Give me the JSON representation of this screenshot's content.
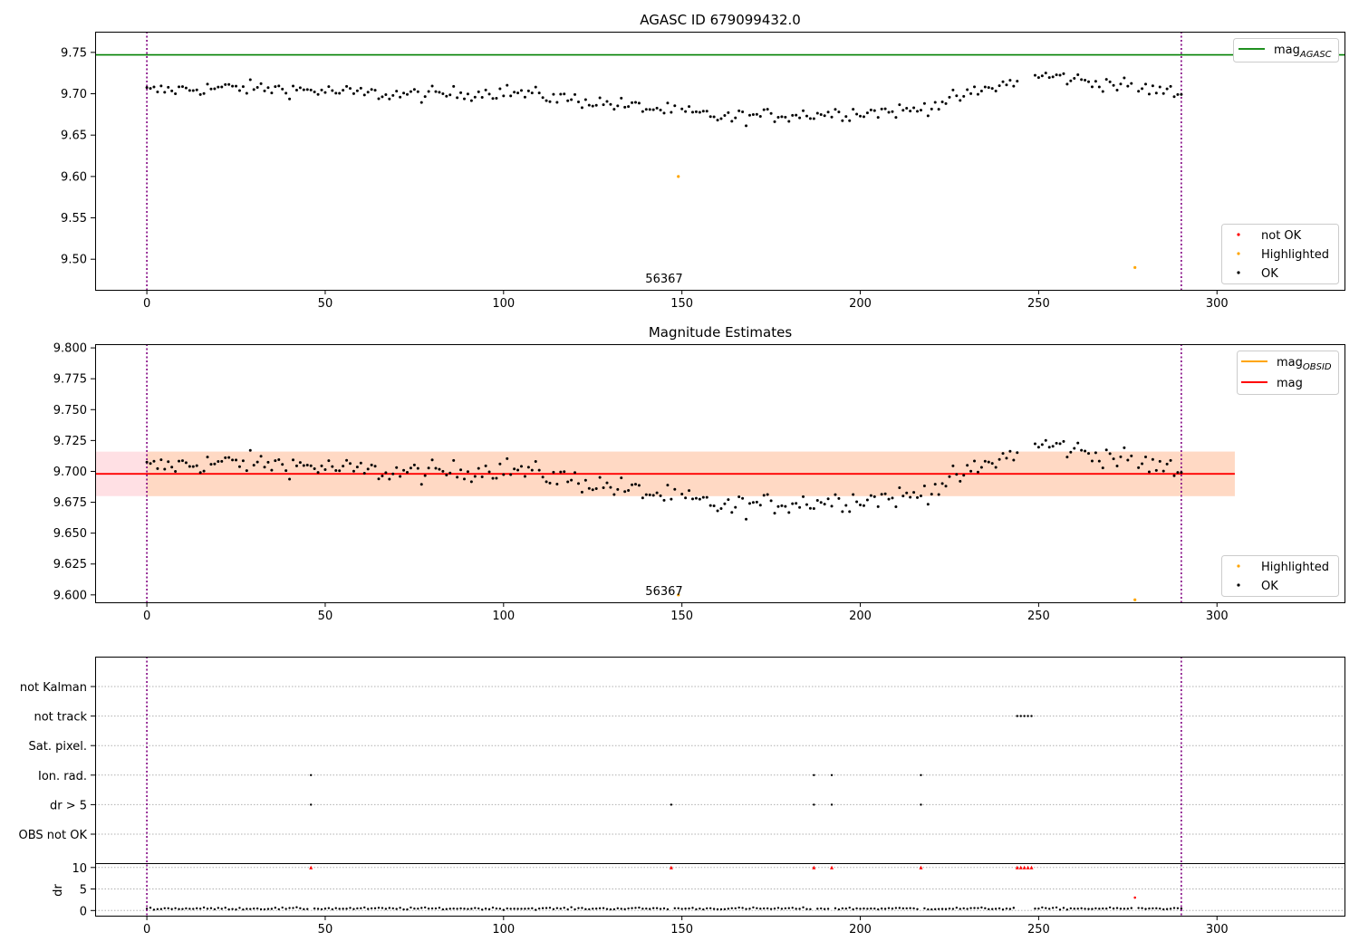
{
  "chart_data": [
    {
      "type": "scatter",
      "title": "AGASC ID 679099432.0",
      "x_ticks": [
        0,
        50,
        100,
        150,
        200,
        250,
        300
      ],
      "y_ticks": [
        9.5,
        9.55,
        9.6,
        9.65,
        9.7,
        9.75
      ],
      "xlim": [
        -14.5,
        336
      ],
      "ylim": [
        9.463,
        9.775
      ],
      "obs_boundaries": [
        0,
        290
      ],
      "annotation": {
        "text": "56367",
        "x": 145
      },
      "reference_line": {
        "name": "mag",
        "subscript": "AGASC",
        "value": 9.747,
        "color": "#008000"
      },
      "legend_lines_position": "top-right",
      "legend_points_position": "bottom-right",
      "legend_points": [
        {
          "name": "not OK",
          "color": "#ff0000"
        },
        {
          "name": "Highlighted",
          "color": "#ffa500"
        },
        {
          "name": "OK",
          "color": "#000000"
        }
      ],
      "highlighted_points": [
        {
          "x": 149,
          "y": 9.6
        },
        {
          "x": 277,
          "y": 9.49
        }
      ]
    },
    {
      "type": "scatter",
      "title": "Magnitude Estimates",
      "x_ticks": [
        0,
        50,
        100,
        150,
        200,
        250,
        300
      ],
      "y_ticks": [
        9.6,
        9.625,
        9.65,
        9.675,
        9.7,
        9.725,
        9.75,
        9.775,
        9.8
      ],
      "xlim": [
        -14.5,
        336
      ],
      "ylim": [
        9.594,
        9.803
      ],
      "obs_boundaries": [
        0,
        290
      ],
      "annotation": {
        "text": "56367",
        "x": 145
      },
      "mag_line": {
        "name": "mag",
        "value": 9.698,
        "x_range": [
          -14.5,
          305
        ],
        "color": "#ff0000"
      },
      "obsid_line": {
        "name": "mag",
        "subscript": "OBSID",
        "color": "#ffa500"
      },
      "band_outer": {
        "range": [
          9.68,
          9.716
        ],
        "x_range": [
          -14.5,
          305
        ]
      },
      "band_inner": {
        "range": [
          9.68,
          9.716
        ],
        "x_range": [
          0,
          305
        ]
      },
      "legend_lines_position": "top-right",
      "legend_points_position": "bottom-right",
      "legend_points": [
        {
          "name": "Highlighted",
          "color": "#ffa500"
        },
        {
          "name": "OK",
          "color": "#000000"
        }
      ],
      "highlighted_points": [
        {
          "x": 149,
          "y": 9.6
        },
        {
          "x": 277,
          "y": 9.596
        }
      ]
    },
    {
      "type": "scatter",
      "title": "",
      "x_ticks": [
        0,
        50,
        100,
        150,
        200,
        250,
        300
      ],
      "xlim": [
        -14.5,
        336
      ],
      "obs_boundaries": [
        0,
        290
      ],
      "flag_categories": [
        "not Kalman",
        "not track",
        "Sat. pixel.",
        "Ion. rad.",
        "dr > 5",
        "OBS not OK"
      ],
      "flag_points": {
        "not Kalman": [],
        "not track": [
          244,
          245,
          246,
          247,
          248
        ],
        "Sat. pixel.": [],
        "Ion. rad.": [
          46,
          187,
          192,
          217
        ],
        "dr > 5": [
          46,
          147,
          187,
          192,
          217
        ],
        "OBS not OK": []
      },
      "dr_ylabel": "dr",
      "dr_y_ticks": [
        0,
        5,
        10
      ],
      "dr_ylim": [
        -1.2,
        10.8
      ],
      "dr_clipped": [
        46,
        147,
        187,
        192,
        217,
        244,
        245,
        246,
        247,
        248
      ],
      "dr_highlighted": [
        {
          "x": 277,
          "y": 3.0
        }
      ]
    }
  ],
  "colors": {
    "ok": "#000000",
    "not_ok": "#ff0000",
    "highlighted": "#ffa500",
    "agasc_line": "#008000",
    "mag_line": "#ff0000",
    "obsid_line": "#ffa500",
    "boundary": "#800080",
    "band_outer": "#ffe0e4",
    "band_inner": "#ffd9c4"
  }
}
